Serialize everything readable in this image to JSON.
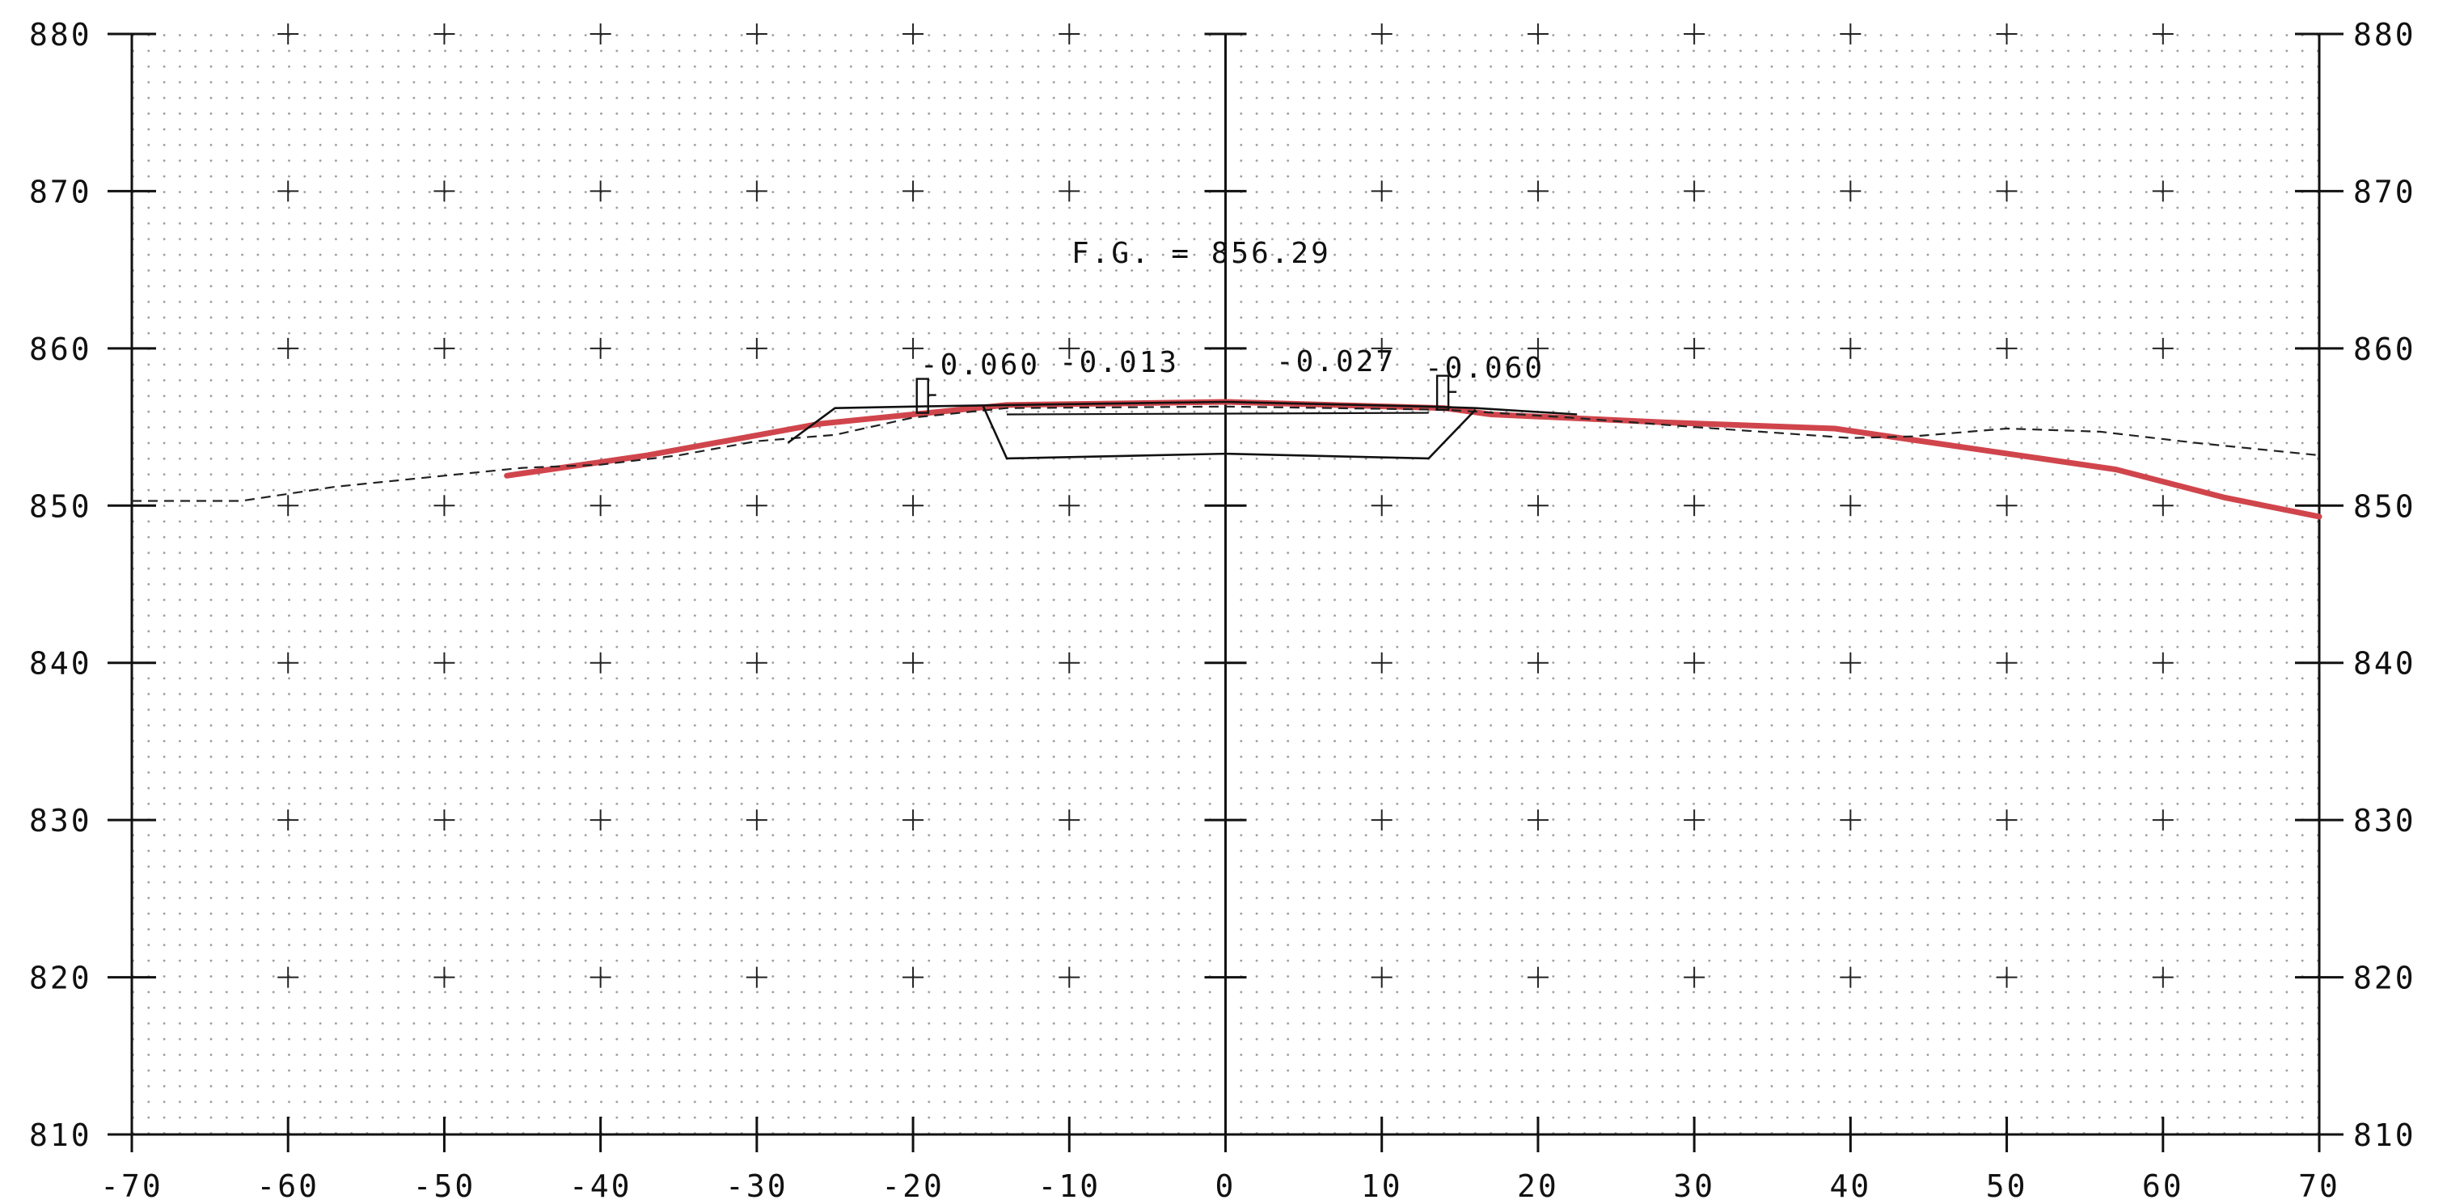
{
  "chart_data": {
    "type": "line",
    "title": "",
    "xlabel": "",
    "ylabel": "",
    "xlim": [
      -70,
      70
    ],
    "ylim": [
      810,
      880
    ],
    "x_ticks": [
      -70,
      -60,
      -50,
      -40,
      -30,
      -20,
      -10,
      0,
      10,
      20,
      30,
      40,
      50,
      60,
      70
    ],
    "x_tick_labels": [
      "-70",
      "-60",
      "-50",
      "-40",
      "-30",
      "-20",
      "-10",
      "0",
      "10",
      "20",
      "30",
      "40",
      "50",
      "60",
      "70"
    ],
    "y_ticks": [
      810,
      820,
      830,
      840,
      850,
      860,
      870,
      880
    ],
    "y_tick_labels": [
      "810",
      "820",
      "830",
      "840",
      "850",
      "860",
      "870",
      "880"
    ],
    "grid": "dotted",
    "colors": {
      "proposed": "#d0454c",
      "existing": "#222222",
      "template": "#111111"
    },
    "series": [
      {
        "style": "solid-red",
        "points": [
          [
            -46,
            851.9
          ],
          [
            -37,
            853.2
          ],
          [
            -26,
            855.2
          ],
          [
            -18,
            856.0
          ],
          [
            -14,
            856.4
          ],
          [
            0,
            856.6
          ],
          [
            14,
            856.2
          ],
          [
            17,
            855.8
          ],
          [
            28,
            855.3
          ],
          [
            39,
            854.9
          ],
          [
            48,
            853.6
          ],
          [
            57,
            852.3
          ],
          [
            64,
            850.5
          ],
          [
            70,
            849.3
          ]
        ]
      },
      {
        "style": "dashed",
        "points": [
          [
            -70,
            850.3
          ],
          [
            -63,
            850.3
          ],
          [
            -57,
            851.2
          ],
          [
            -50,
            851.9
          ],
          [
            -45,
            852.4
          ],
          [
            -40,
            852.6
          ],
          [
            -35,
            853.2
          ],
          [
            -30,
            854.1
          ],
          [
            -25,
            854.5
          ],
          [
            -20,
            855.6
          ],
          [
            -14,
            856.2
          ],
          [
            0,
            856.3
          ],
          [
            14,
            856.1
          ],
          [
            22,
            855.6
          ],
          [
            30,
            855.0
          ],
          [
            40,
            854.3
          ],
          [
            44,
            854.4
          ],
          [
            50,
            854.9
          ],
          [
            56,
            854.7
          ],
          [
            62,
            854.0
          ],
          [
            70,
            853.2
          ]
        ]
      },
      {
        "style": "section-template",
        "points": [
          [
            -28,
            854.0
          ],
          [
            -25,
            856.2
          ],
          [
            -20,
            856.3
          ],
          [
            -14,
            856.4
          ],
          [
            0,
            856.6
          ],
          [
            13,
            856.3
          ],
          [
            16,
            856.2
          ],
          [
            22.5,
            855.8
          ]
        ]
      },
      {
        "style": "section-subgrade",
        "points": [
          [
            -14,
            853.0
          ],
          [
            0,
            853.3
          ],
          [
            13,
            853.0
          ]
        ]
      }
    ],
    "annotations": {
      "finished_grade": "F.G. = 856.29",
      "slope_left_outer": "-0.060",
      "slope_left_inner": "-0.013",
      "slope_right_inner": "-0.027",
      "slope_right_outer": "-0.060"
    }
  }
}
